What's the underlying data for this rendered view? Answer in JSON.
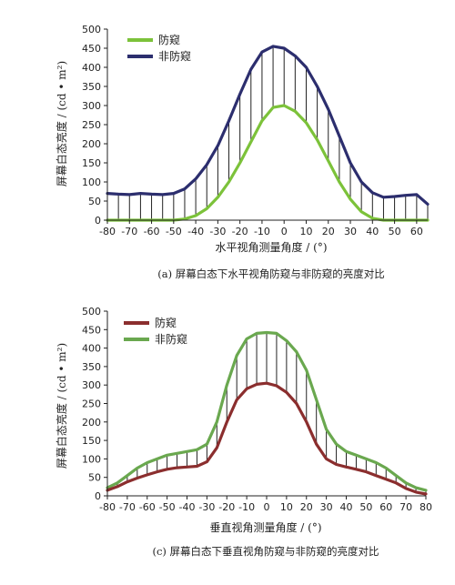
{
  "chart_data": [
    {
      "type": "line",
      "title": "",
      "caption": "(a) 屏幕白态下水平视角防窥与非防窥的亮度对比",
      "xlabel": "水平视角测量角度 / (°)",
      "ylabel": "屏幕白态亮度 / (cd • m²)",
      "xlim": [
        -80,
        65
      ],
      "ylim": [
        0,
        500
      ],
      "xticks": [
        -80,
        -70,
        -60,
        -50,
        -40,
        -30,
        -20,
        -10,
        0,
        10,
        20,
        30,
        40,
        50,
        60
      ],
      "yticks": [
        0,
        50,
        100,
        150,
        200,
        250,
        300,
        350,
        400,
        450,
        500
      ],
      "legend_position": "top-left",
      "grid": false,
      "series": [
        {
          "name": "防窥",
          "color": "#7cc23a",
          "x": [
            -80,
            -75,
            -70,
            -65,
            -60,
            -55,
            -50,
            -45,
            -40,
            -35,
            -30,
            -25,
            -20,
            -15,
            -10,
            -5,
            0,
            5,
            10,
            15,
            20,
            25,
            30,
            35,
            40,
            45,
            50,
            55,
            60,
            65
          ],
          "y": [
            0,
            0,
            0,
            0,
            0,
            0,
            0,
            3,
            12,
            30,
            60,
            100,
            150,
            205,
            260,
            295,
            300,
            285,
            255,
            210,
            155,
            100,
            55,
            22,
            5,
            0,
            0,
            0,
            0,
            0
          ]
        },
        {
          "name": "非防窥",
          "color": "#2c2e6e",
          "x": [
            -80,
            -75,
            -70,
            -65,
            -60,
            -55,
            -50,
            -45,
            -40,
            -35,
            -30,
            -25,
            -20,
            -15,
            -10,
            -5,
            0,
            5,
            10,
            15,
            20,
            25,
            30,
            35,
            40,
            45,
            50,
            55,
            60,
            65
          ],
          "y": [
            70,
            68,
            67,
            70,
            68,
            67,
            70,
            82,
            108,
            145,
            195,
            260,
            330,
            395,
            440,
            455,
            450,
            430,
            400,
            350,
            290,
            220,
            150,
            100,
            72,
            60,
            62,
            65,
            67,
            42
          ]
        }
      ]
    },
    {
      "type": "line",
      "title": "",
      "caption": "(c) 屏幕白态下垂直视角防窥与非防窥的亮度对比",
      "xlabel": "垂直视角测量角度 / (°)",
      "ylabel": "屏幕白态亮度 / (cd • m²)",
      "xlim": [
        -80,
        80
      ],
      "ylim": [
        0,
        500
      ],
      "xticks": [
        -80,
        -70,
        -60,
        -50,
        -40,
        -30,
        -20,
        -10,
        0,
        10,
        20,
        30,
        40,
        50,
        60,
        70,
        80
      ],
      "yticks": [
        0,
        50,
        100,
        150,
        200,
        250,
        300,
        350,
        400,
        450,
        500
      ],
      "legend_position": "top-left",
      "grid": false,
      "series": [
        {
          "name": "防窥",
          "color": "#8b2e2e",
          "x": [
            -80,
            -75,
            -70,
            -65,
            -60,
            -55,
            -50,
            -45,
            -40,
            -35,
            -30,
            -25,
            -20,
            -15,
            -10,
            -5,
            0,
            5,
            10,
            15,
            20,
            25,
            30,
            35,
            40,
            45,
            50,
            55,
            60,
            65,
            70,
            75,
            80
          ],
          "y": [
            15,
            25,
            38,
            48,
            57,
            65,
            72,
            76,
            78,
            80,
            92,
            130,
            200,
            260,
            290,
            302,
            305,
            298,
            280,
            250,
            200,
            140,
            100,
            85,
            78,
            72,
            65,
            55,
            45,
            35,
            20,
            10,
            5
          ]
        },
        {
          "name": "非防窥",
          "color": "#6aa84f",
          "x": [
            -80,
            -75,
            -70,
            -65,
            -60,
            -55,
            -50,
            -45,
            -40,
            -35,
            -30,
            -25,
            -20,
            -15,
            -10,
            -5,
            0,
            5,
            10,
            15,
            20,
            25,
            30,
            35,
            40,
            45,
            50,
            55,
            60,
            65,
            70,
            75,
            80
          ],
          "y": [
            22,
            35,
            55,
            75,
            90,
            100,
            110,
            115,
            120,
            125,
            140,
            200,
            300,
            380,
            425,
            440,
            442,
            440,
            420,
            390,
            340,
            260,
            180,
            140,
            120,
            110,
            100,
            90,
            75,
            55,
            35,
            22,
            15
          ]
        }
      ]
    }
  ]
}
